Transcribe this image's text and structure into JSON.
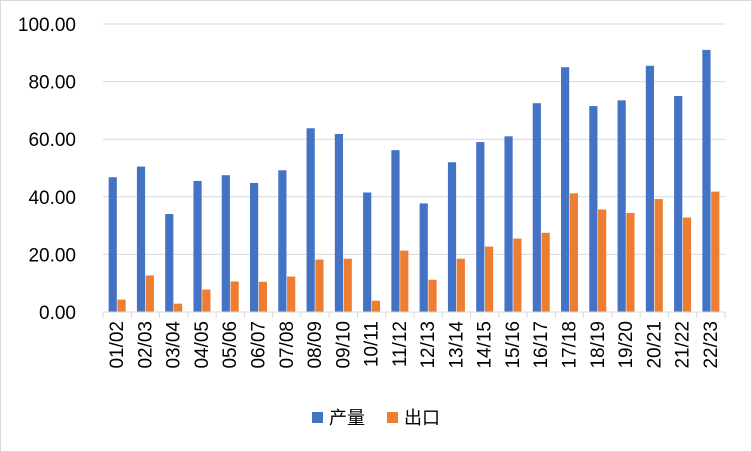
{
  "chart_data": {
    "type": "bar",
    "categories": [
      "01/02",
      "02/03",
      "03/04",
      "04/05",
      "05/06",
      "06/07",
      "07/08",
      "08/09",
      "09/10",
      "10/11",
      "11/12",
      "12/13",
      "13/14",
      "14/15",
      "15/16",
      "16/17",
      "17/18",
      "18/19",
      "19/20",
      "20/21",
      "21/22",
      "22/23"
    ],
    "series": [
      {
        "name": "产量",
        "color": "#4472C4",
        "values": [
          46.8,
          50.5,
          34.0,
          45.5,
          47.5,
          44.8,
          49.2,
          63.8,
          61.8,
          41.5,
          56.2,
          37.7,
          52.0,
          59.0,
          61.0,
          72.5,
          85.0,
          71.5,
          73.5,
          85.5,
          75.0,
          91.0
        ]
      },
      {
        "name": "出口",
        "color": "#ED7D31",
        "values": [
          4.3,
          12.7,
          2.9,
          7.8,
          10.6,
          10.5,
          12.3,
          18.2,
          18.5,
          3.9,
          21.3,
          11.2,
          18.5,
          22.7,
          25.5,
          27.5,
          41.2,
          35.6,
          34.4,
          39.2,
          32.8,
          41.8
        ]
      }
    ],
    "y_ticks": [
      "0.00",
      "20.00",
      "40.00",
      "60.00",
      "80.00",
      "100.00"
    ],
    "ylim": [
      0,
      100
    ],
    "grid": true,
    "legend_position": "bottom"
  }
}
